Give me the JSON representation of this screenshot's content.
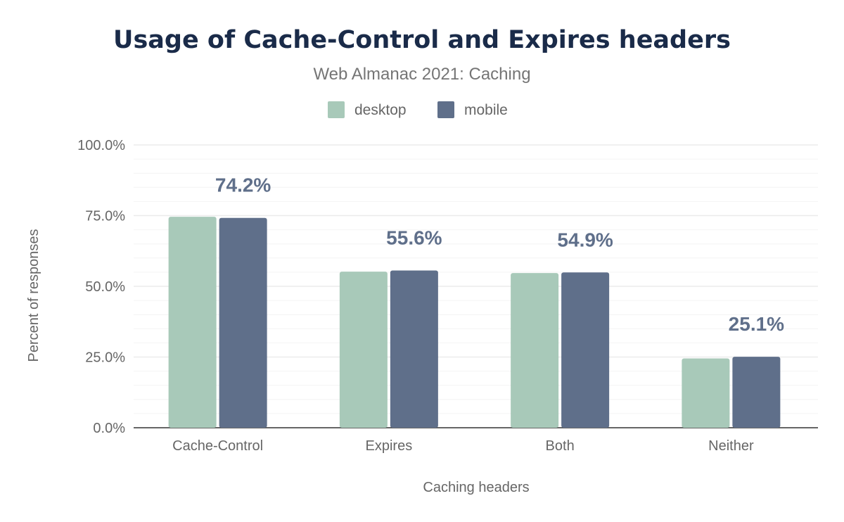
{
  "chart_data": {
    "type": "bar",
    "title": "Usage of Cache-Control and Expires headers",
    "subtitle": "Web Almanac 2021: Caching",
    "xlabel": "Caching headers",
    "ylabel": "Percent of responses",
    "categories": [
      "Cache-Control",
      "Expires",
      "Both",
      "Neither"
    ],
    "series": [
      {
        "name": "desktop",
        "color": "#a8c9b9",
        "values": [
          74.6,
          55.2,
          54.7,
          24.5
        ]
      },
      {
        "name": "mobile",
        "color": "#5f6f8a",
        "values": [
          74.2,
          55.6,
          54.9,
          25.1
        ],
        "data_labels": [
          "74.2%",
          "55.6%",
          "54.9%",
          "25.1%"
        ]
      }
    ],
    "ylim": [
      0,
      100
    ],
    "yticks": [
      "0.0%",
      "25.0%",
      "50.0%",
      "75.0%",
      "100.0%"
    ],
    "grid": true,
    "legend_position": "top-center"
  }
}
